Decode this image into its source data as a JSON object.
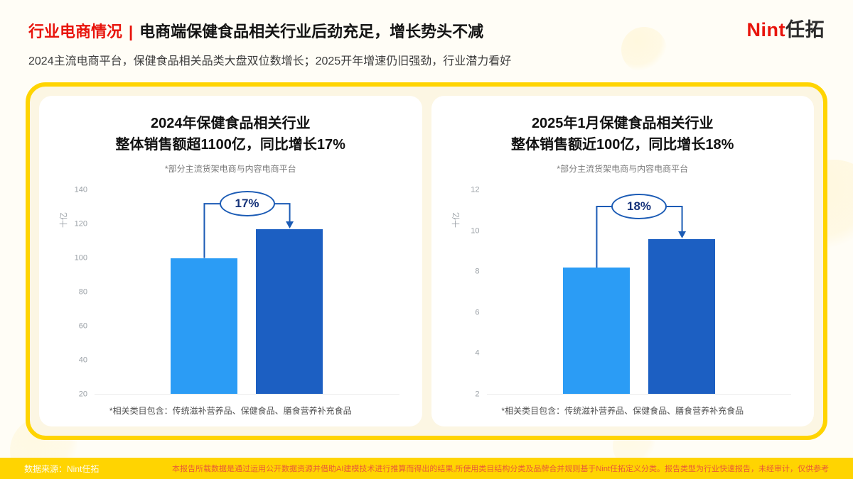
{
  "header": {
    "section_title": "行业电商情况",
    "divider": "|",
    "headline": "电商端保健食品相关行业后劲充足，增长势头不减",
    "logo_en": "Nint",
    "logo_cn": "任拓",
    "subtitle": "2024主流电商平台，保健食品相关品类大盘双位数增长；2025开年增速仍旧强劲，行业潜力看好"
  },
  "chart_data": [
    {
      "type": "bar",
      "title_line1": "2024年保健食品相关行业",
      "title_line2": "整体销售额超1100亿，同比增长17%",
      "subtitle": "*部分主流货架电商与内容电商平台",
      "ylabel": "十亿",
      "values": [
        100,
        117
      ],
      "growth": "17%",
      "bracket": 132,
      "ylim": [
        20,
        140
      ],
      "ytick_step": 20,
      "bar_colors": [
        "#2B9CF5",
        "#1C5FC2"
      ],
      "legend_position": "none",
      "grid": false,
      "footnote": "*相关类目包含：传统滋补营养品、保健食品、膳食营养补充食品"
    },
    {
      "type": "bar",
      "title_line1": "2025年1月保健食品相关行业",
      "title_line2": "整体销售额近100亿，同比增长18%",
      "subtitle": "*部分主流货架电商与内容电商平台",
      "ylabel": "十亿",
      "values": [
        8.2,
        9.6
      ],
      "growth": "18%",
      "bracket": 11.2,
      "ylim": [
        2,
        12
      ],
      "ytick_step": 2,
      "bar_colors": [
        "#2B9CF5",
        "#1C5FC2"
      ],
      "legend_position": "none",
      "grid": false,
      "footnote": "*相关类目包含：传统滋补营养品、保健食品、膳食营养补充食品"
    }
  ],
  "footer": {
    "source": "数据来源：Nint任拓",
    "disclaimer": "本报告所载数据是通过运用公开数据资源并借助AI建模技术进行推算而得出的结果,所使用类目结构分类及品牌合并规则基于Nint任拓定义分类。报告类型为行业快速报告，未经审计，仅供参考"
  }
}
